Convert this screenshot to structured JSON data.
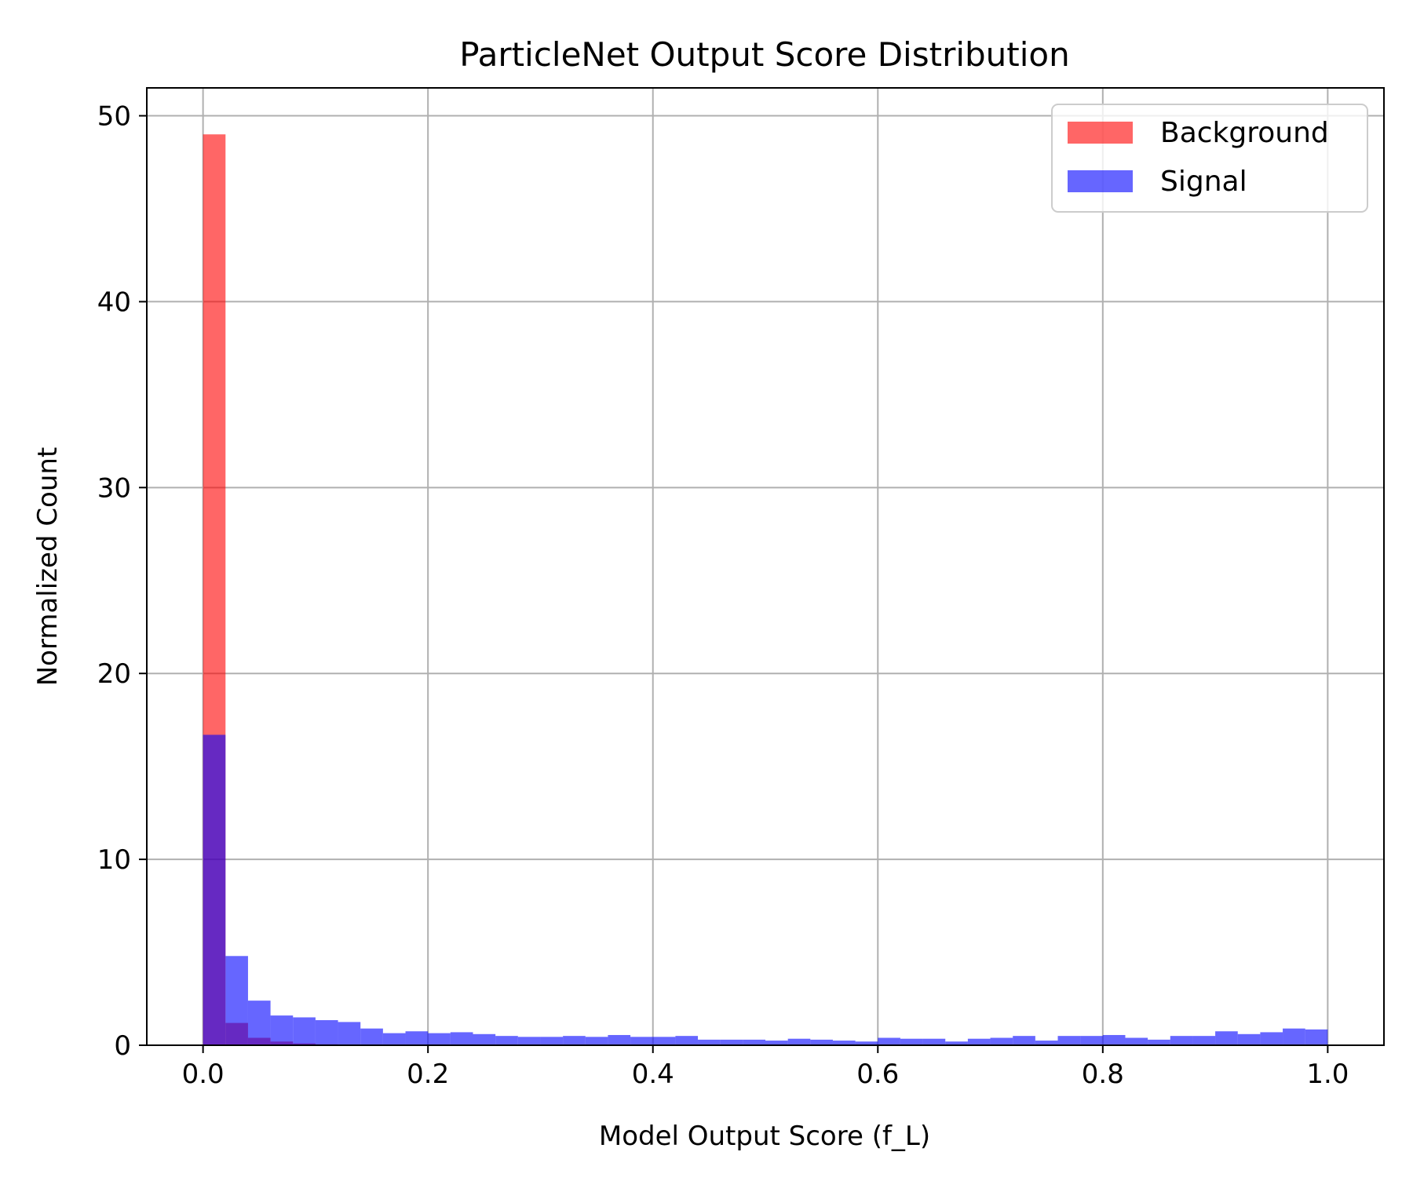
{
  "chart_data": {
    "type": "bar",
    "title": "ParticleNet Output Score Distribution",
    "xlabel": "Model Output Score (f_L)",
    "ylabel": "Normalized Count",
    "xlim": [
      -0.05,
      1.05
    ],
    "ylim": [
      0,
      51.5
    ],
    "xticks": [
      0.0,
      0.2,
      0.4,
      0.6,
      0.8,
      1.0
    ],
    "xtick_labels": [
      "0.0",
      "0.2",
      "0.4",
      "0.6",
      "0.8",
      "1.0"
    ],
    "yticks": [
      0,
      10,
      20,
      30,
      40,
      50
    ],
    "ytick_labels": [
      "0",
      "10",
      "20",
      "30",
      "40",
      "50"
    ],
    "grid": true,
    "legend_position": "top-right",
    "bin_edges_range": [
      0,
      1
    ],
    "bin_count": 50,
    "series": [
      {
        "name": "Background",
        "color": "#ff0000",
        "opacity": 0.6,
        "values": [
          49.0,
          1.2,
          0.4,
          0.2,
          0.1,
          0.05,
          0.04,
          0.03,
          0.02,
          0.02,
          0.01,
          0.01,
          0.01,
          0.01,
          0.01,
          0.01,
          0.01,
          0.01,
          0.01,
          0.01,
          0.01,
          0.01,
          0.01,
          0.01,
          0.01,
          0.01,
          0.01,
          0.01,
          0.01,
          0.01,
          0.01,
          0.01,
          0.01,
          0.01,
          0.01,
          0.01,
          0.01,
          0.01,
          0.01,
          0.01,
          0.01,
          0.01,
          0.01,
          0.01,
          0.01,
          0.01,
          0.01,
          0.01,
          0.01,
          0.01
        ]
      },
      {
        "name": "Signal",
        "color": "#0000ff",
        "opacity": 0.6,
        "values": [
          16.7,
          4.8,
          2.4,
          1.6,
          1.5,
          1.35,
          1.25,
          0.9,
          0.65,
          0.75,
          0.65,
          0.7,
          0.6,
          0.5,
          0.45,
          0.45,
          0.5,
          0.45,
          0.55,
          0.45,
          0.45,
          0.5,
          0.3,
          0.3,
          0.3,
          0.25,
          0.35,
          0.3,
          0.25,
          0.2,
          0.4,
          0.35,
          0.35,
          0.2,
          0.35,
          0.4,
          0.5,
          0.25,
          0.5,
          0.5,
          0.55,
          0.4,
          0.3,
          0.5,
          0.5,
          0.75,
          0.6,
          0.7,
          0.9,
          0.85
        ]
      }
    ]
  }
}
